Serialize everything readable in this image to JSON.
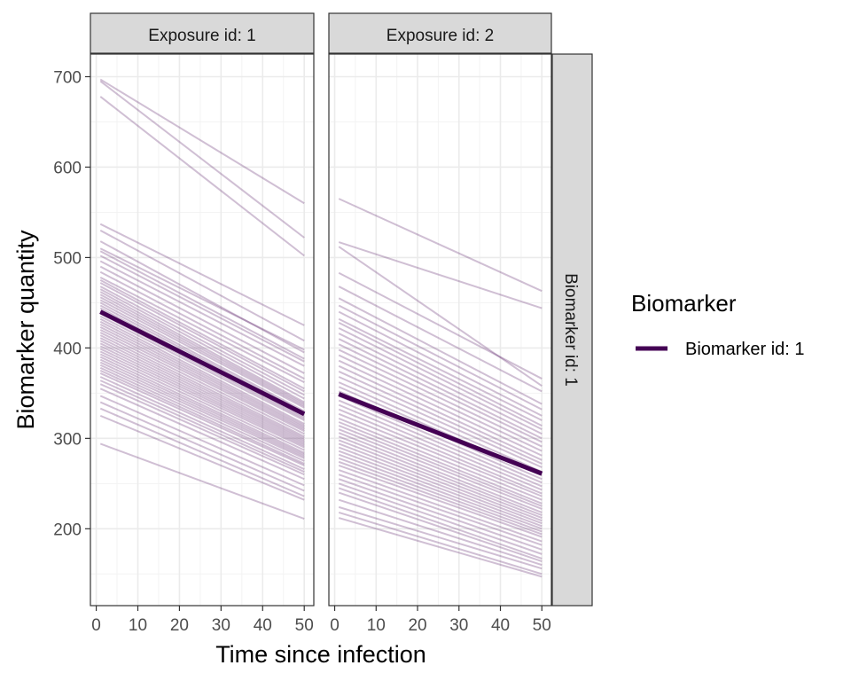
{
  "chart_data": {
    "type": "line",
    "xlabel": "Time since infection",
    "ylabel": "Biomarker quantity",
    "xlim": [
      1,
      50
    ],
    "ylim": [
      115,
      725
    ],
    "x_ticks": [
      0,
      10,
      20,
      30,
      40,
      50
    ],
    "y_ticks": [
      200,
      300,
      400,
      500,
      600,
      700
    ],
    "grid": true,
    "legend": {
      "title": "Biomarker",
      "position": "right",
      "entries": [
        {
          "label": "Biomarker id: 1",
          "color": "#440154"
        }
      ]
    },
    "row_strip": "Biomarker id: 1",
    "colors": {
      "line": "#440154",
      "strip_fill": "#d9d9d9",
      "grid": "#ebebeb"
    },
    "panels": [
      {
        "strip": "Exposure id: 1",
        "mean_line": {
          "y_start": 440,
          "y_end": 327
        },
        "individuals": [
          [
            697,
            560
          ],
          [
            695,
            522
          ],
          [
            678,
            502
          ],
          [
            537,
            425
          ],
          [
            530,
            408
          ],
          [
            518,
            395
          ],
          [
            510,
            398
          ],
          [
            507,
            388
          ],
          [
            502,
            385
          ],
          [
            496,
            380
          ],
          [
            490,
            372
          ],
          [
            484,
            366
          ],
          [
            478,
            362
          ],
          [
            475,
            355
          ],
          [
            472,
            352
          ],
          [
            468,
            348
          ],
          [
            465,
            344
          ],
          [
            462,
            340
          ],
          [
            459,
            338
          ],
          [
            456,
            336
          ],
          [
            453,
            334
          ],
          [
            450,
            330
          ],
          [
            447,
            328
          ],
          [
            444,
            326
          ],
          [
            441,
            324
          ],
          [
            438,
            322
          ],
          [
            435,
            320
          ],
          [
            432,
            316
          ],
          [
            429,
            314
          ],
          [
            426,
            312
          ],
          [
            423,
            310
          ],
          [
            420,
            308
          ],
          [
            417,
            305
          ],
          [
            414,
            302
          ],
          [
            411,
            300
          ],
          [
            408,
            298
          ],
          [
            405,
            296
          ],
          [
            402,
            294
          ],
          [
            399,
            292
          ],
          [
            396,
            290
          ],
          [
            393,
            287
          ],
          [
            390,
            284
          ],
          [
            387,
            282
          ],
          [
            384,
            280
          ],
          [
            381,
            278
          ],
          [
            378,
            275
          ],
          [
            375,
            272
          ],
          [
            372,
            270
          ],
          [
            368,
            266
          ],
          [
            364,
            263
          ],
          [
            360,
            260
          ],
          [
            355,
            255
          ],
          [
            347,
            248
          ],
          [
            340,
            242
          ],
          [
            333,
            236
          ],
          [
            325,
            232
          ],
          [
            294,
            211
          ]
        ]
      },
      {
        "strip": "Exposure id: 2",
        "mean_line": {
          "y_start": 349,
          "y_end": 261
        },
        "individuals": [
          [
            565,
            463
          ],
          [
            517,
            444
          ],
          [
            512,
            358
          ],
          [
            483,
            366
          ],
          [
            468,
            352
          ],
          [
            455,
            338
          ],
          [
            447,
            332
          ],
          [
            440,
            325
          ],
          [
            432,
            320
          ],
          [
            428,
            314
          ],
          [
            422,
            310
          ],
          [
            416,
            305
          ],
          [
            410,
            300
          ],
          [
            404,
            296
          ],
          [
            398,
            291
          ],
          [
            392,
            286
          ],
          [
            386,
            281
          ],
          [
            380,
            276
          ],
          [
            374,
            272
          ],
          [
            368,
            268
          ],
          [
            362,
            263
          ],
          [
            357,
            259
          ],
          [
            352,
            255
          ],
          [
            347,
            251
          ],
          [
            342,
            247
          ],
          [
            337,
            243
          ],
          [
            332,
            239
          ],
          [
            327,
            236
          ],
          [
            322,
            232
          ],
          [
            318,
            228
          ],
          [
            314,
            225
          ],
          [
            310,
            222
          ],
          [
            306,
            218
          ],
          [
            302,
            215
          ],
          [
            298,
            212
          ],
          [
            294,
            209
          ],
          [
            290,
            206
          ],
          [
            286,
            203
          ],
          [
            282,
            200
          ],
          [
            278,
            197
          ],
          [
            274,
            194
          ],
          [
            270,
            191
          ],
          [
            265,
            186
          ],
          [
            260,
            182
          ],
          [
            255,
            177
          ],
          [
            250,
            172
          ],
          [
            245,
            167
          ],
          [
            240,
            164
          ],
          [
            232,
            160
          ],
          [
            224,
            156
          ],
          [
            218,
            150
          ],
          [
            212,
            147
          ]
        ]
      }
    ]
  }
}
